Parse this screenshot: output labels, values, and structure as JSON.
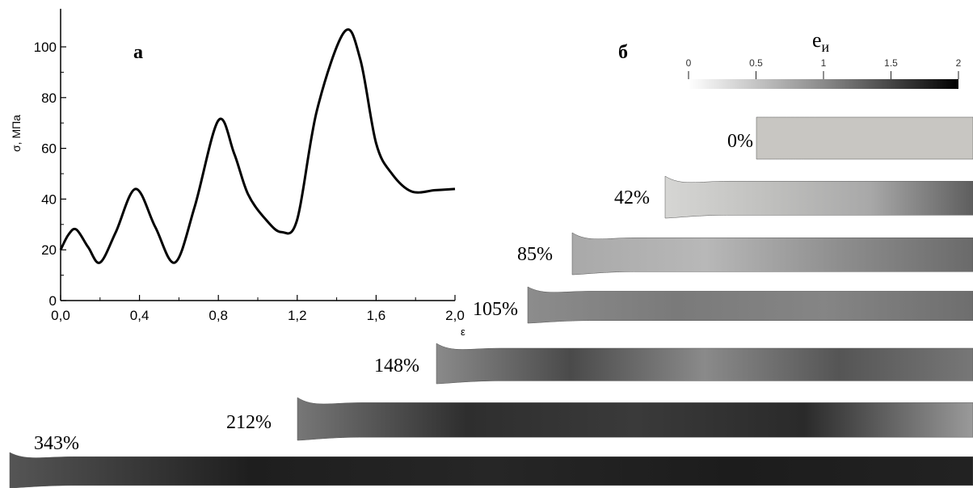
{
  "chart_data": {
    "type": "line",
    "panel_label": "а",
    "xlabel": "ε",
    "ylabel": "σ, МПа",
    "x": [
      0,
      0.04,
      0.08,
      0.14,
      0.2,
      0.28,
      0.38,
      0.48,
      0.58,
      0.68,
      0.8,
      0.88,
      0.95,
      1.04,
      1.12,
      1.2,
      1.3,
      1.44,
      1.52,
      1.6,
      1.68,
      1.78,
      1.9,
      2.0
    ],
    "series": [
      {
        "color": "#000000",
        "values": [
          20,
          26,
          28,
          21,
          15,
          27,
          44,
          29,
          15,
          37,
          71,
          58,
          42,
          32,
          27,
          32,
          75,
          106,
          95,
          62,
          50,
          43,
          43.5,
          44
        ]
      }
    ],
    "xlim": [
      0,
      2
    ],
    "ylim": [
      0,
      115
    ],
    "xticks": [
      {
        "value": 0,
        "label": "0,0"
      },
      {
        "value": 0.4,
        "label": "0,4"
      },
      {
        "value": 0.8,
        "label": "0,8"
      },
      {
        "value": 1.2,
        "label": "1,2"
      },
      {
        "value": 1.6,
        "label": "1,6"
      },
      {
        "value": 2.0,
        "label": "2,0"
      }
    ],
    "yticks": [
      0,
      20,
      40,
      60,
      80,
      100
    ]
  },
  "panel_b": {
    "label": "б",
    "colorbar": {
      "title": "e",
      "subscript": "и",
      "range": [
        0,
        2
      ],
      "ticks": [
        0,
        0.5,
        1,
        1.5,
        2
      ]
    },
    "specimens": [
      "0%",
      "42%",
      "85%",
      "105%",
      "148%",
      "212%",
      "343%"
    ]
  }
}
